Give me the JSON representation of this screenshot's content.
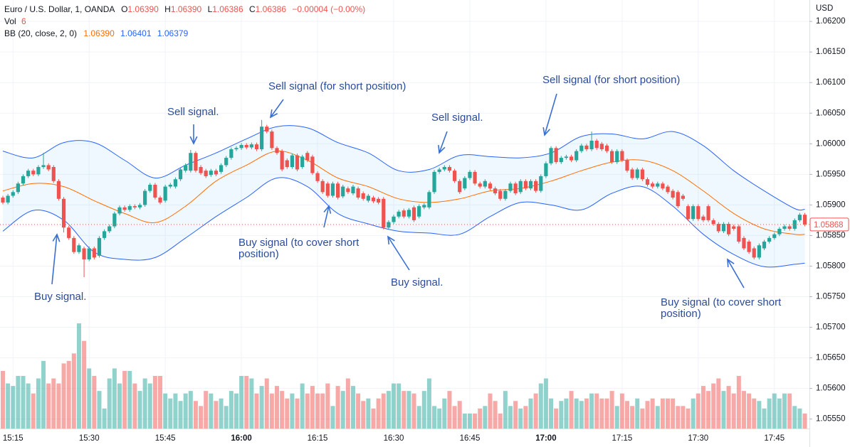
{
  "chart_data": {
    "type": "candlestick",
    "currency": "USD",
    "legend": {
      "symbol": "Euro / U.S. Dollar, 1, OANDA",
      "ohlc": [
        {
          "label": "O",
          "value": "1.06390"
        },
        {
          "label": "H",
          "value": "1.06390"
        },
        {
          "label": "L",
          "value": "1.06386"
        },
        {
          "label": "C",
          "value": "1.06386"
        }
      ],
      "change": "−0.00004 (−0.00%)",
      "volume_label": "Vol",
      "bb_label": "BB (20, close, 2, 0)",
      "bb_values": [
        "1.06390",
        "1.06401",
        "1.06379"
      ]
    },
    "up_color": "#26a69a",
    "down_color": "#ef5350",
    "ylim": [
      1.05538,
      1.06235
    ],
    "yticks": [
      {
        "value": 1.062,
        "label": "1.06200"
      },
      {
        "value": 1.0615,
        "label": "1.06150"
      },
      {
        "value": 1.061,
        "label": "1.06100"
      },
      {
        "value": 1.0605,
        "label": "1.06050"
      },
      {
        "value": 1.06,
        "label": "1.06000"
      },
      {
        "value": 1.0595,
        "label": "1.05950"
      },
      {
        "value": 1.059,
        "label": "1.05900"
      },
      {
        "value": 1.0585,
        "label": "1.05850"
      },
      {
        "value": 1.058,
        "label": "1.05800"
      },
      {
        "value": 1.0575,
        "label": "1.05750"
      },
      {
        "value": 1.057,
        "label": "1.05700"
      },
      {
        "value": 1.0565,
        "label": "1.05650"
      },
      {
        "value": 1.056,
        "label": "1.05600"
      },
      {
        "value": 1.0555,
        "label": "1.05550"
      }
    ],
    "xticks": [
      "15:15",
      "15:30",
      "15:45",
      "16:00",
      "16:15",
      "16:30",
      "16:45",
      "17:00",
      "17:15",
      "17:30",
      "17:45"
    ],
    "grid": true,
    "x": [
      "15:13",
      "15:14",
      "15:15",
      "15:16",
      "15:17",
      "15:18",
      "15:19",
      "15:20",
      "15:21",
      "15:22",
      "15:23",
      "15:24",
      "15:25",
      "15:26",
      "15:27",
      "15:28",
      "15:29",
      "15:30",
      "15:31",
      "15:32",
      "15:33",
      "15:34",
      "15:35",
      "15:36",
      "15:37",
      "15:38",
      "15:39",
      "15:40",
      "15:41",
      "15:42",
      "15:43",
      "15:44",
      "15:45",
      "15:46",
      "15:47",
      "15:48",
      "15:49",
      "15:50",
      "15:51",
      "15:52",
      "15:53",
      "15:54",
      "15:55",
      "15:56",
      "15:57",
      "15:58",
      "15:59",
      "16:00",
      "16:01",
      "16:02",
      "16:03",
      "16:04",
      "16:05",
      "16:06",
      "16:07",
      "16:08",
      "16:09",
      "16:10",
      "16:11",
      "16:12",
      "16:13",
      "16:14",
      "16:15",
      "16:16",
      "16:17",
      "16:18",
      "16:19",
      "16:20",
      "16:21",
      "16:22",
      "16:23",
      "16:24",
      "16:25",
      "16:26",
      "16:27",
      "16:28",
      "16:29",
      "16:30",
      "16:31",
      "16:32",
      "16:33",
      "16:34",
      "16:35",
      "16:36",
      "16:37",
      "16:38",
      "16:39",
      "16:40",
      "16:41",
      "16:42",
      "16:43",
      "16:44",
      "16:45",
      "16:46",
      "16:47",
      "16:48",
      "16:49",
      "16:50",
      "16:51",
      "16:52",
      "16:53",
      "16:54",
      "16:55",
      "16:56",
      "16:57",
      "16:58",
      "16:59",
      "17:00",
      "17:01",
      "17:02",
      "17:03",
      "17:04",
      "17:05",
      "17:06",
      "17:07",
      "17:08",
      "17:09",
      "17:10",
      "17:11",
      "17:12",
      "17:13",
      "17:14",
      "17:15",
      "17:16",
      "17:17",
      "17:18",
      "17:19",
      "17:20",
      "17:21",
      "17:22",
      "17:23",
      "17:24",
      "17:25",
      "17:26",
      "17:27",
      "17:28",
      "17:29",
      "17:30",
      "17:31",
      "17:32",
      "17:33",
      "17:34",
      "17:35",
      "17:36",
      "17:37",
      "17:38",
      "17:39",
      "17:40",
      "17:41",
      "17:42",
      "17:43",
      "17:44",
      "17:45",
      "17:46",
      "17:47",
      "17:48",
      "17:49",
      "17:50",
      "17:51"
    ],
    "open": [
      1.05912,
      1.05904,
      1.05915,
      1.05921,
      1.05935,
      1.05947,
      1.05956,
      1.0595,
      1.05962,
      1.05965,
      1.05962,
      1.05939,
      1.0591,
      1.05863,
      1.05846,
      1.05823,
      1.05829,
      1.05811,
      1.05829,
      1.05817,
      1.05846,
      1.05857,
      1.05865,
      1.05886,
      1.05896,
      1.05892,
      1.05898,
      1.05896,
      1.059,
      1.05923,
      1.05933,
      1.05912,
      1.05907,
      1.0593,
      1.0593,
      1.05942,
      1.05956,
      1.05956,
      1.05985,
      1.05962,
      1.05956,
      1.05949,
      1.05956,
      1.05954,
      1.05965,
      1.05977,
      1.05991,
      1.05993,
      1.05998,
      1.05994,
      1.05999,
      1.05991,
      1.06028,
      1.0602,
      1.05993,
      1.05988,
      1.05973,
      1.05962,
      1.05981,
      1.05962,
      1.05985,
      1.05979,
      1.05952,
      1.05939,
      1.05935,
      1.05915,
      1.05935,
      1.05914,
      1.05927,
      1.05919,
      1.05927,
      1.05919,
      1.05907,
      1.05912,
      1.0591,
      1.0591,
      1.05863,
      1.05872,
      1.05881,
      1.05891,
      1.05881,
      1.05896,
      1.05881,
      1.05896,
      1.05896,
      1.05921,
      1.05954,
      1.05958,
      1.05962,
      1.05956,
      1.05939,
      1.05927,
      1.05944,
      1.05954,
      1.05935,
      1.0593,
      1.05935,
      1.05927,
      1.05923,
      1.0591,
      1.05923,
      1.05935,
      1.05921,
      1.05939,
      1.05927,
      1.05939,
      1.05923,
      1.05947,
      1.05968,
      1.05993,
      1.0597,
      1.05977,
      1.05979,
      1.05973,
      1.05988,
      1.05997,
      1.05991,
      1.06005,
      1.06,
      1.05997,
      1.05988,
      1.0597,
      1.05988,
      1.05973,
      1.05958,
      1.05944,
      1.05958,
      1.05942,
      1.05935,
      1.0593,
      1.05935,
      1.0593,
      1.05923,
      1.05921,
      1.05915,
      1.05898,
      1.05877,
      1.05898,
      1.05881,
      1.05898,
      1.05875,
      1.05869,
      1.05857,
      1.05869,
      1.05865,
      1.05865,
      1.05846,
      1.0584,
      1.05829,
      1.05814,
      1.05829,
      1.0584,
      1.05846,
      1.05852,
      1.05861,
      1.05865,
      1.05861,
      1.05875,
      1.05884
    ],
    "high": [
      1.05915,
      1.05918,
      1.05924,
      1.05938,
      1.0595,
      1.05959,
      1.05959,
      1.05965,
      1.05985,
      1.05968,
      1.05965,
      1.05942,
      1.05913,
      1.05866,
      1.05849,
      1.05837,
      1.05832,
      1.05832,
      1.05832,
      1.05849,
      1.0586,
      1.05868,
      1.05889,
      1.05899,
      1.05899,
      1.05901,
      1.05901,
      1.05903,
      1.05926,
      1.05936,
      1.05936,
      1.05915,
      1.05933,
      1.05936,
      1.05945,
      1.05961,
      1.05968,
      1.0599,
      1.05988,
      1.05965,
      1.05959,
      1.05959,
      1.05959,
      1.05968,
      1.0598,
      1.05994,
      1.05996,
      1.06001,
      1.06001,
      1.06002,
      1.06002,
      1.06039,
      1.06031,
      1.06023,
      1.05996,
      1.05991,
      1.05976,
      1.05984,
      1.05984,
      1.05982,
      1.05988,
      1.05982,
      1.05955,
      1.05942,
      1.05938,
      1.05938,
      1.05938,
      1.05933,
      1.0593,
      1.05933,
      1.0593,
      1.05922,
      1.05918,
      1.05915,
      1.05913,
      1.05913,
      1.05875,
      1.05884,
      1.05892,
      1.05894,
      1.05895,
      1.05899,
      1.05901,
      1.05903,
      1.05924,
      1.05957,
      1.05961,
      1.05965,
      1.05965,
      1.05959,
      1.05942,
      1.05947,
      1.05957,
      1.05957,
      1.05938,
      1.05942,
      1.05938,
      1.0593,
      1.05926,
      1.05926,
      1.05938,
      1.05938,
      1.05942,
      1.05942,
      1.05942,
      1.05942,
      1.0595,
      1.05971,
      1.05996,
      1.05996,
      1.0598,
      1.05982,
      1.05982,
      1.05991,
      1.06,
      1.06,
      1.0602,
      1.06008,
      1.06003,
      1.06,
      1.05991,
      1.05991,
      1.05991,
      1.05976,
      1.05961,
      1.05961,
      1.05961,
      1.05945,
      1.05938,
      1.05938,
      1.05938,
      1.05933,
      1.05926,
      1.05924,
      1.05918,
      1.05901,
      1.05901,
      1.05901,
      1.05884,
      1.05901,
      1.05878,
      1.05872,
      1.05872,
      1.05872,
      1.05868,
      1.05868,
      1.05849,
      1.05843,
      1.05832,
      1.05837,
      1.05843,
      1.05849,
      1.05855,
      1.05864,
      1.05868,
      1.05868,
      1.05878,
      1.05887,
      1.05887
    ],
    "low": [
      1.05901,
      1.05901,
      1.05912,
      1.05918,
      1.05932,
      1.05944,
      1.05947,
      1.05947,
      1.05959,
      1.05955,
      1.05936,
      1.05907,
      1.05855,
      1.05843,
      1.0582,
      1.0582,
      1.05782,
      1.05808,
      1.05811,
      1.05814,
      1.05843,
      1.05854,
      1.05862,
      1.05883,
      1.05889,
      1.05889,
      1.05893,
      1.05893,
      1.05897,
      1.0592,
      1.05909,
      1.05901,
      1.05904,
      1.05927,
      1.05927,
      1.05939,
      1.05953,
      1.05953,
      1.05953,
      1.05949,
      1.05944,
      1.05946,
      1.05947,
      1.05951,
      1.05962,
      1.05974,
      1.05988,
      1.0599,
      1.05991,
      1.05991,
      1.05988,
      1.05988,
      1.06017,
      1.0599,
      1.05982,
      1.05955,
      1.05959,
      1.05959,
      1.05955,
      1.05959,
      1.0597,
      1.05949,
      1.05936,
      1.05918,
      1.05912,
      1.05912,
      1.05909,
      1.05911,
      1.05918,
      1.05916,
      1.05909,
      1.05907,
      1.05904,
      1.05903,
      1.05901,
      1.0586,
      1.0586,
      1.05869,
      1.05878,
      1.05878,
      1.05878,
      1.05872,
      1.05878,
      1.05893,
      1.05893,
      1.05918,
      1.05951,
      1.05955,
      1.05953,
      1.05936,
      1.05918,
      1.05924,
      1.05941,
      1.05932,
      1.05927,
      1.05927,
      1.05924,
      1.05916,
      1.05907,
      1.05907,
      1.0592,
      1.05916,
      1.05918,
      1.05924,
      1.05924,
      1.0592,
      1.0592,
      1.05944,
      1.05965,
      1.05967,
      1.05967,
      1.05974,
      1.0597,
      1.0597,
      1.05985,
      1.05988,
      1.05988,
      1.0599,
      1.05988,
      1.05985,
      1.05967,
      1.05967,
      1.0597,
      1.05953,
      1.05941,
      1.05941,
      1.05939,
      1.0593,
      1.05927,
      1.05927,
      1.05924,
      1.05918,
      1.05909,
      1.05895,
      1.05907,
      1.05874,
      1.05874,
      1.05874,
      1.05872,
      1.05872,
      1.05866,
      1.05854,
      1.05854,
      1.05849,
      1.05858,
      1.05837,
      1.05826,
      1.0582,
      1.05811,
      1.05811,
      1.05826,
      1.05837,
      1.05843,
      1.05849,
      1.05858,
      1.05858,
      1.05858,
      1.05872,
      1.05865
    ],
    "close": [
      1.05904,
      1.05915,
      1.05921,
      1.05935,
      1.05947,
      1.05956,
      1.0595,
      1.05962,
      1.05965,
      1.05958,
      1.05939,
      1.0591,
      1.05863,
      1.05846,
      1.05823,
      1.05834,
      1.05811,
      1.05829,
      1.05814,
      1.05846,
      1.05857,
      1.05865,
      1.05886,
      1.05896,
      1.05892,
      1.05898,
      1.05896,
      1.059,
      1.05923,
      1.05933,
      1.05912,
      1.05904,
      1.0593,
      1.05933,
      1.05942,
      1.05958,
      1.05965,
      1.05985,
      1.05956,
      1.05952,
      1.05947,
      1.05956,
      1.0595,
      1.05965,
      1.05977,
      1.05991,
      1.05993,
      1.05998,
      1.05994,
      1.05999,
      1.05991,
      1.06028,
      1.0602,
      1.05993,
      1.05985,
      1.05958,
      1.05962,
      1.05981,
      1.05958,
      1.05979,
      1.05973,
      1.05952,
      1.05939,
      1.05921,
      1.05915,
      1.05935,
      1.05912,
      1.0593,
      1.05921,
      1.0593,
      1.05912,
      1.0591,
      1.05915,
      1.05906,
      1.05904,
      1.05863,
      1.05872,
      1.05881,
      1.05889,
      1.05881,
      1.05892,
      1.05875,
      1.05898,
      1.059,
      1.05921,
      1.05954,
      1.05958,
      1.05962,
      1.05956,
      1.05939,
      1.05921,
      1.05944,
      1.05954,
      1.05935,
      1.0593,
      1.05939,
      1.05927,
      1.05919,
      1.0591,
      1.05923,
      1.05935,
      1.05919,
      1.05939,
      1.05927,
      1.05939,
      1.05923,
      1.05947,
      1.05968,
      1.05993,
      1.0597,
      1.05977,
      1.05979,
      1.05973,
      1.05988,
      1.05997,
      1.05991,
      1.06005,
      1.05993,
      1.05991,
      1.05988,
      1.0597,
      1.05988,
      1.05973,
      1.05956,
      1.05944,
      1.05958,
      1.05942,
      1.05933,
      1.0593,
      1.05935,
      1.05927,
      1.05921,
      1.05912,
      1.05898,
      1.0591,
      1.05877,
      1.05898,
      1.05877,
      1.05875,
      1.05875,
      1.05869,
      1.05857,
      1.05869,
      1.05852,
      1.05861,
      1.0584,
      1.05829,
      1.05823,
      1.05814,
      1.05834,
      1.0584,
      1.05846,
      1.05852,
      1.05861,
      1.05865,
      1.05861,
      1.05875,
      1.05884,
      1.05868
    ],
    "volume": [
      23,
      18,
      17,
      21,
      21,
      18,
      14,
      20,
      27,
      18,
      20,
      18,
      26,
      27,
      30,
      42,
      35,
      24,
      21,
      15,
      8,
      20,
      24,
      18,
      23,
      23,
      18,
      15,
      20,
      18,
      21,
      21,
      14,
      12,
      14,
      11,
      14,
      15,
      11,
      9,
      15,
      14,
      11,
      12,
      9,
      15,
      14,
      21,
      21,
      20,
      14,
      17,
      20,
      14,
      17,
      15,
      12,
      14,
      12,
      18,
      14,
      17,
      14,
      14,
      18,
      9,
      17,
      15,
      20,
      17,
      14,
      11,
      12,
      8,
      12,
      14,
      15,
      18,
      18,
      15,
      15,
      14,
      9,
      15,
      20,
      9,
      8,
      12,
      15,
      9,
      11,
      6,
      6,
      6,
      8,
      9,
      14,
      11,
      6,
      15,
      9,
      11,
      8,
      9,
      12,
      14,
      18,
      20,
      12,
      8,
      11,
      12,
      15,
      12,
      11,
      12,
      14,
      14,
      12,
      12,
      15,
      9,
      14,
      11,
      9,
      12,
      8,
      11,
      12,
      9,
      12,
      12,
      12,
      9,
      9,
      8,
      12,
      14,
      17,
      15,
      18,
      20,
      15,
      17,
      14,
      21,
      15,
      14,
      12,
      11,
      8,
      12,
      14,
      12,
      14,
      14,
      9,
      8,
      6
    ],
    "bollinger": {
      "band_color": "#2962ff",
      "basis_color": "#ff6d00",
      "x": [
        "15:13",
        "15:19",
        "15:25",
        "15:31",
        "15:37",
        "15:43",
        "15:49",
        "15:55",
        "16:01",
        "16:07",
        "16:13",
        "16:19",
        "16:25",
        "16:31",
        "16:37",
        "16:43",
        "16:49",
        "16:55",
        "17:01",
        "17:07",
        "17:13",
        "17:19",
        "17:25",
        "17:31",
        "17:37",
        "17:43",
        "17:49",
        "17:51"
      ],
      "upper": [
        1.05988,
        1.05977,
        1.06002,
        1.06002,
        1.05973,
        1.05944,
        1.05965,
        1.05985,
        1.06008,
        1.06028,
        1.06026,
        1.06002,
        1.05985,
        1.05956,
        1.05958,
        1.05981,
        1.05979,
        1.05977,
        1.05985,
        1.06012,
        1.06016,
        1.06008,
        1.0602,
        1.05997,
        1.05956,
        1.05923,
        1.05894,
        1.05893
      ],
      "basis": [
        1.05923,
        1.05935,
        1.0593,
        1.05907,
        1.05886,
        1.05871,
        1.05898,
        1.05939,
        1.05965,
        1.05988,
        1.05973,
        1.05944,
        1.0593,
        1.0591,
        1.05904,
        1.0591,
        1.05923,
        1.05927,
        1.05939,
        1.05956,
        1.0597,
        1.05973,
        1.05956,
        1.05923,
        1.05886,
        1.05861,
        1.05852,
        1.05852
      ],
      "lower": [
        1.05857,
        1.05891,
        1.05875,
        1.05823,
        1.05811,
        1.05814,
        1.05846,
        1.05881,
        1.05912,
        1.05944,
        1.0593,
        1.05886,
        1.05869,
        1.05857,
        1.05854,
        1.05852,
        1.05881,
        1.05904,
        1.059,
        1.05892,
        1.05919,
        1.0593,
        1.05898,
        1.05852,
        1.05819,
        1.05799,
        1.05803,
        1.05805
      ]
    },
    "annotations": [
      {
        "text": [
          "Sell signal (for short position)"
        ]
      },
      {
        "text": [
          "Sell signal."
        ]
      },
      {
        "text": [
          "Sell signal."
        ]
      },
      {
        "text": [
          "Sell signal (for short position)"
        ]
      },
      {
        "text": [
          "Buy signal."
        ]
      },
      {
        "text": [
          "Buy signal (to cover short",
          "position)"
        ]
      },
      {
        "text": [
          "Buy signal."
        ]
      },
      {
        "text": [
          "Buy signal (to cover short",
          "position)"
        ]
      }
    ]
  }
}
